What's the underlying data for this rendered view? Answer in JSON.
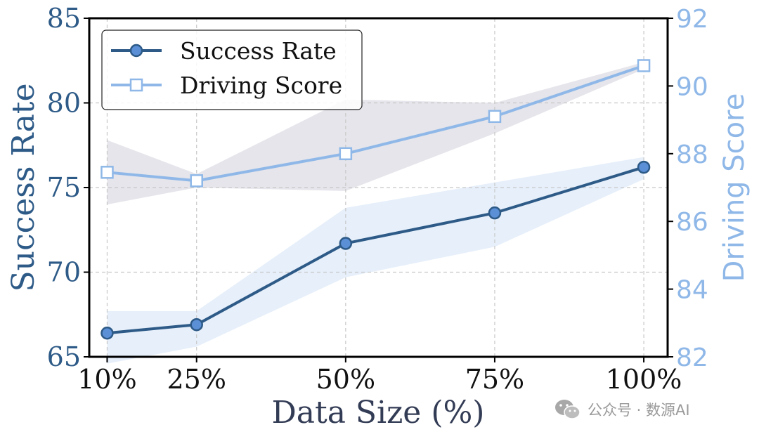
{
  "chart_data": {
    "type": "line",
    "categories": [
      "10%",
      "25%",
      "50%",
      "75%",
      "100%"
    ],
    "x_positions": [
      10,
      25,
      50,
      75,
      100
    ],
    "xlabel": "Data Size (%)",
    "xlim": [
      7,
      104
    ],
    "y_left": {
      "label": "Success Rate",
      "lim": [
        65,
        85
      ],
      "ticks": [
        "65",
        "70",
        "75",
        "80",
        "85"
      ],
      "color": "#2d5a87"
    },
    "y_right": {
      "label": "Driving Score",
      "lim": [
        82,
        92
      ],
      "ticks": [
        "82",
        "84",
        "86",
        "88",
        "90",
        "92"
      ],
      "color": "#8fb8e8"
    },
    "series": [
      {
        "name": "Success Rate",
        "axis": "left",
        "marker": "circle",
        "color": "#2d5a87",
        "marker_fill": "#5b8fd6",
        "band_color": "#dde9f8",
        "values": [
          66.4,
          66.9,
          71.7,
          73.5,
          76.2
        ],
        "band_lower": [
          64.6,
          65.6,
          69.7,
          71.5,
          75.5
        ],
        "band_upper": [
          67.7,
          67.7,
          73.8,
          75.3,
          76.8
        ]
      },
      {
        "name": "Driving Score",
        "axis": "right",
        "marker": "square",
        "color": "#8fb8e8",
        "marker_fill": "#ffffff",
        "band_color": "#dcdce4",
        "values": [
          87.45,
          87.2,
          88.0,
          89.1,
          90.6
        ],
        "band_lower": [
          86.5,
          87.0,
          86.9,
          88.6,
          90.5
        ],
        "band_upper": [
          88.4,
          87.4,
          89.6,
          89.5,
          90.7
        ]
      }
    ],
    "legend": {
      "position": "top-left"
    },
    "grid": true
  },
  "watermark": {
    "text": "公众号 · 数源AI",
    "icon": "wechat-icon"
  }
}
